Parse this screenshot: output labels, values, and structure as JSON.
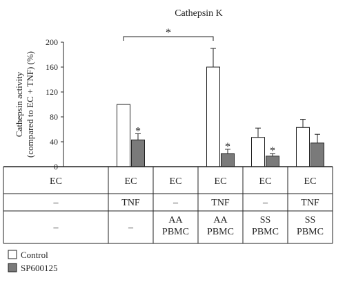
{
  "chart_data": {
    "type": "bar",
    "title": "Cathepsin K",
    "ylabel_lines": [
      "Cathepsin activity",
      "(compared to EC + TNF) (%)"
    ],
    "xlabel": "",
    "ylim": [
      0,
      200
    ],
    "yticks": [
      0,
      40,
      80,
      120,
      160,
      200
    ],
    "grid": false,
    "legend_position": "bottom-left",
    "categories": [
      {
        "cell": "EC",
        "treatment": "–",
        "pbmc": [
          "–"
        ]
      },
      {
        "cell": "EC",
        "treatment": "TNF",
        "pbmc": [
          "–"
        ]
      },
      {
        "cell": "EC",
        "treatment": "–",
        "pbmc": [
          "AA",
          "PBMC"
        ]
      },
      {
        "cell": "EC",
        "treatment": "TNF",
        "pbmc": [
          "AA",
          "PBMC"
        ]
      },
      {
        "cell": "EC",
        "treatment": "–",
        "pbmc": [
          "SS",
          "PBMC"
        ]
      },
      {
        "cell": "EC",
        "treatment": "TNF",
        "pbmc": [
          "SS",
          "PBMC"
        ]
      }
    ],
    "series": [
      {
        "name": "Control",
        "color": "#ffffff",
        "values": [
          0,
          100,
          0,
          160,
          47,
          63
        ],
        "errors": [
          0,
          0,
          0,
          30,
          15,
          13
        ],
        "sig": [
          "",
          "",
          "",
          "",
          "",
          ""
        ]
      },
      {
        "name": "SP600125",
        "color": "#7a7a7a",
        "values": [
          0,
          43,
          0,
          21,
          17,
          38
        ],
        "errors": [
          0,
          10,
          0,
          7,
          4,
          14
        ],
        "sig": [
          "",
          "*",
          "",
          "*",
          "*",
          ""
        ]
      }
    ],
    "bracket": {
      "from_category": 1,
      "to_category": 3,
      "label": "*"
    }
  }
}
